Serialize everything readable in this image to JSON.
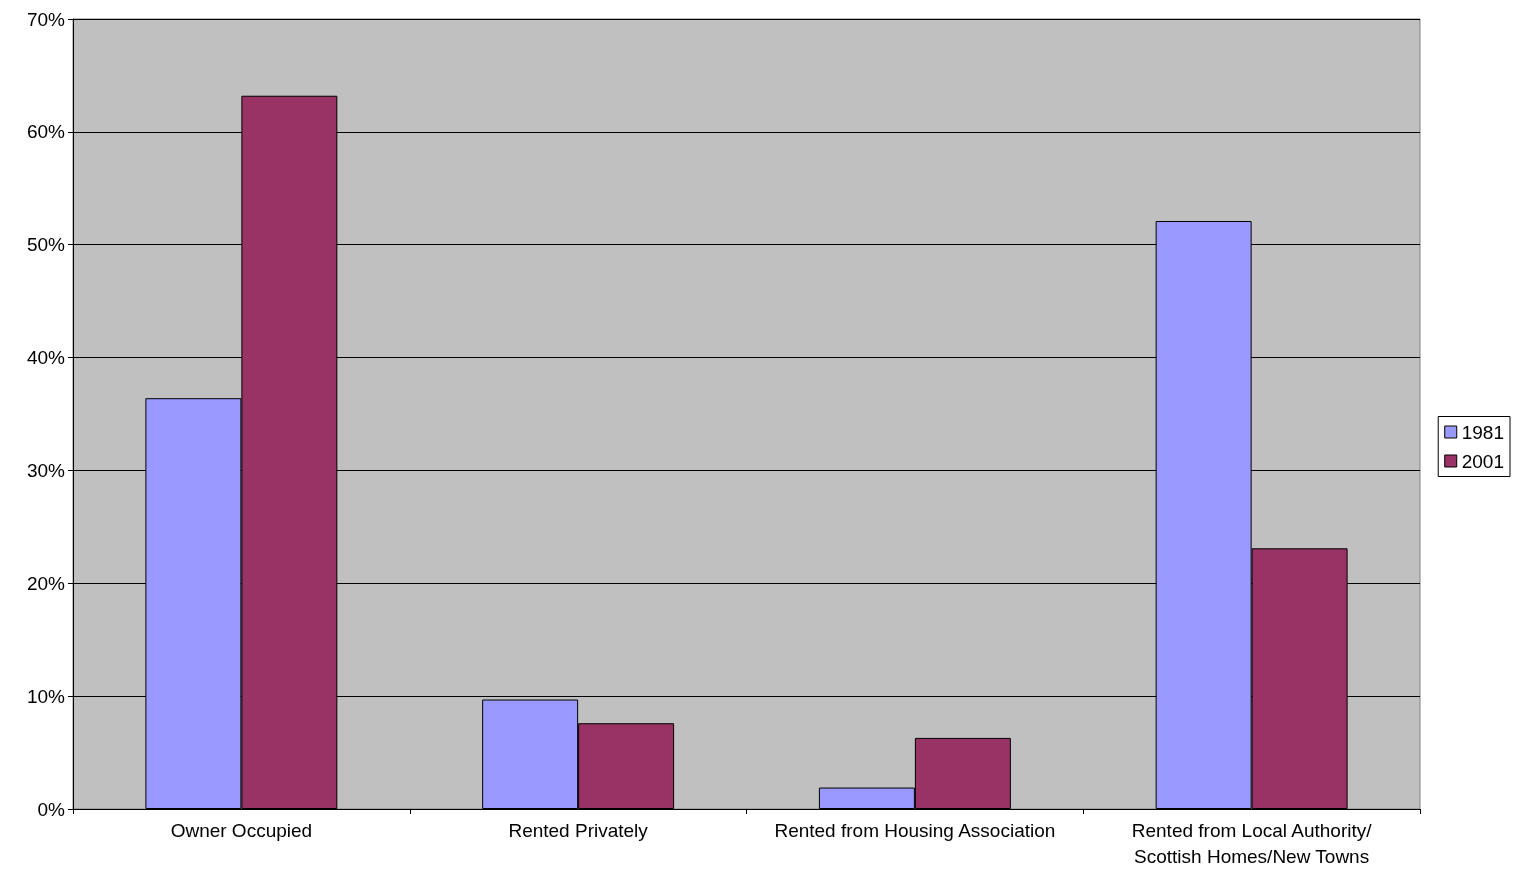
{
  "chart_data": {
    "type": "bar",
    "categories": [
      "Owner Occupied",
      "Rented Privately",
      "Rented from Housing Association",
      "Rented from Local Authority/Scottish Homes/New Towns"
    ],
    "series": [
      {
        "name": "1981",
        "color": "#9999ff",
        "values": [
          36.4,
          9.7,
          1.9,
          52.1
        ]
      },
      {
        "name": "2001",
        "color": "#993366",
        "values": [
          63.2,
          7.6,
          6.3,
          23.1
        ]
      }
    ],
    "ylim": [
      0,
      70
    ],
    "yticks": [
      {
        "value": 0,
        "label": "0%"
      },
      {
        "value": 10,
        "label": "10%"
      },
      {
        "value": 20,
        "label": "20%"
      },
      {
        "value": 30,
        "label": "30%"
      },
      {
        "value": 40,
        "label": "40%"
      },
      {
        "value": 50,
        "label": "50%"
      },
      {
        "value": 60,
        "label": "60%"
      },
      {
        "value": 70,
        "label": "70%"
      }
    ],
    "grid": "y",
    "legend": "right"
  }
}
